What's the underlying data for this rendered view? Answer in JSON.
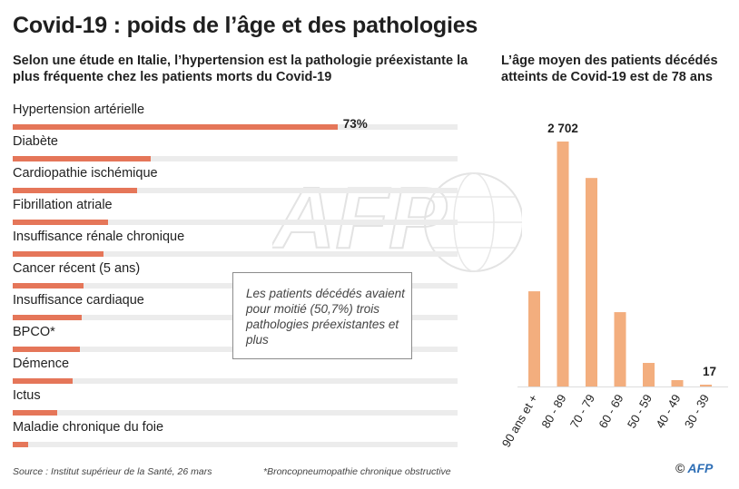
{
  "header": {
    "title": "Covid-19 : poids de l’âge et des pathologies",
    "subtitle_left": "Selon une étude en Italie, l’hypertension est la pathologie préexistante la plus fréquente chez les patients morts du Covid-19",
    "subtitle_right": "L’âge moyen des patients décédés atteints de Covid-19 est de 78 ans"
  },
  "note": "Les patients décédés avaient pour moitié (50,7%) trois pathologies préexistantes et plus",
  "footer": {
    "source": "Source : Institut supérieur de la Santé, 26 mars",
    "footnote": "*Broncopneumopathie chronique obstructive",
    "logo_copyright": "©",
    "logo_text": "AFP"
  },
  "watermark_text": "AFP",
  "colors": {
    "bar": "#e57659",
    "bar_light": "#f3ae7e",
    "track": "#ececec"
  },
  "chart_data": [
    {
      "type": "bar",
      "orientation": "horizontal",
      "categories": [
        "Hypertension artérielle",
        "Diabète",
        "Cardiopathie ischémique",
        "Fibrillation atriale",
        "Insuffisance rénale chronique",
        "Cancer récent (5 ans)",
        "Insuffisance cardiaque",
        "BPCO*",
        "Démence",
        "Ictus",
        "Maladie chronique du foie"
      ],
      "values": [
        73,
        31,
        28,
        21.5,
        20.5,
        16,
        15.5,
        15,
        13.5,
        10,
        3.5
      ],
      "value_labels": [
        "73%",
        "",
        "",
        "",
        "",
        "",
        "",
        "",
        "",
        "",
        ""
      ],
      "xlim": [
        0,
        100
      ]
    },
    {
      "type": "bar",
      "orientation": "vertical",
      "categories": [
        "90 ans et +",
        "80 - 89",
        "70 - 79",
        "60 - 69",
        "50 - 59",
        "40 - 49",
        "30 - 39"
      ],
      "values": [
        1050,
        2702,
        2300,
        820,
        260,
        70,
        17
      ],
      "value_labels": [
        "",
        "2 702",
        "",
        "",
        "",
        "",
        "17"
      ],
      "ylim": [
        0,
        2702
      ]
    }
  ]
}
